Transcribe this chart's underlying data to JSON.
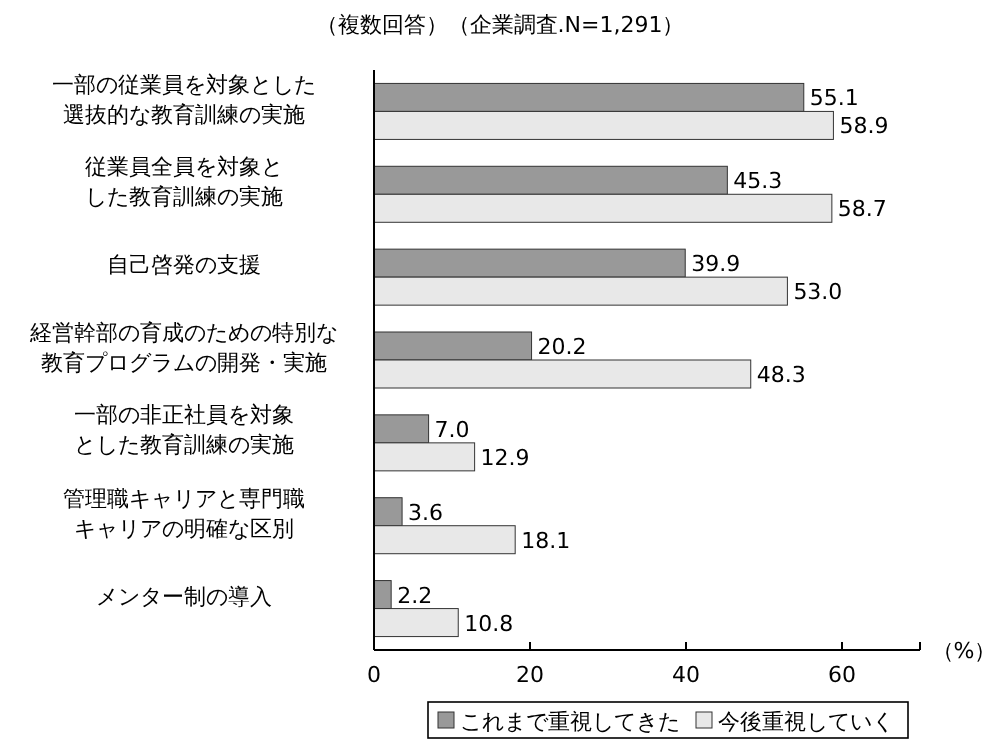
{
  "chart_data": {
    "type": "bar",
    "orientation": "horizontal",
    "title": "（複数回答）（企業調査.N=1,291）",
    "xlabel": "（%）",
    "categories": [
      "一部の従業員を対象とした選抜的な教育訓練の実施",
      "従業員全員を対象とした教育訓練の実施",
      "自己啓発の支援",
      "経営幹部の育成のための特別な教育プログラムの開発・実施",
      "一部の非正社員を対象とした教育訓練の実施",
      "管理職キャリアと専門職キャリアの明確な区別",
      "メンター制の導入"
    ],
    "series": [
      {
        "name": "これまで重視してきた",
        "color": "#999999",
        "values": [
          55.1,
          45.3,
          39.9,
          20.2,
          7.0,
          3.6,
          2.2
        ],
        "value_labels": [
          "55.1",
          "45.3",
          "39.9",
          "20.2",
          "7.0",
          "3.6",
          "2.2"
        ]
      },
      {
        "name": "今後重視していく",
        "color": "#e8e8e8",
        "values": [
          58.9,
          58.7,
          53.0,
          48.3,
          12.9,
          18.1,
          10.8
        ],
        "value_labels": [
          "58.9",
          "58.7",
          "53.0",
          "48.3",
          "12.9",
          "18.1",
          "10.8"
        ]
      }
    ],
    "xlim": [
      0,
      70
    ],
    "xticks": [
      0,
      20,
      40,
      60
    ],
    "grid": false,
    "legend": "bottom"
  }
}
